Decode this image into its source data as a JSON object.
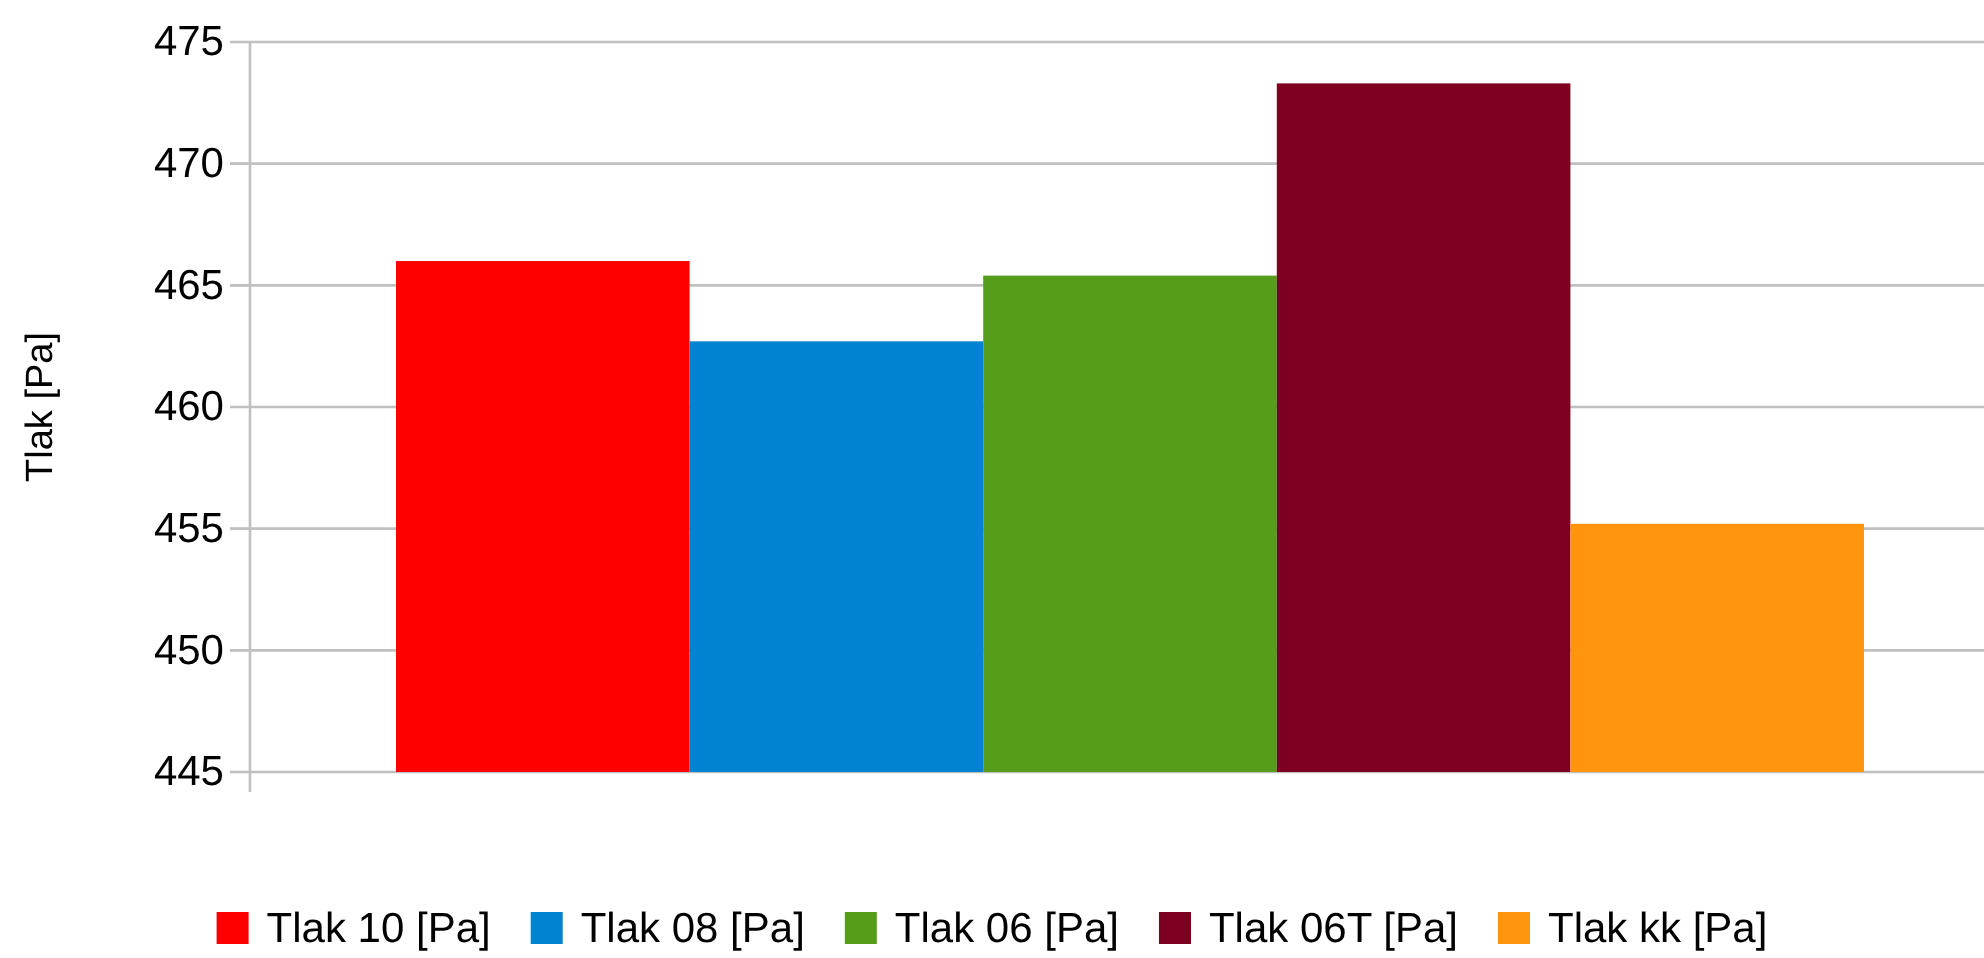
{
  "chart_data": {
    "type": "bar",
    "ylabel": "Tlak [Pa]",
    "categories": [
      null
    ],
    "series": [
      {
        "name": "Tlak 10 [Pa]",
        "color": "#ff0000",
        "values": [
          466.0
        ]
      },
      {
        "name": "Tlak 08 [Pa]",
        "color": "#0084d1",
        "values": [
          462.7
        ]
      },
      {
        "name": "Tlak 06 [Pa]",
        "color": "#579d1c",
        "values": [
          465.4
        ]
      },
      {
        "name": "Tlak 06T [Pa]",
        "color": "#7e0021",
        "values": [
          473.3
        ]
      },
      {
        "name": "Tlak kk [Pa]",
        "color": "#ff950e",
        "values": [
          455.2
        ]
      }
    ],
    "ylim": [
      445,
      475
    ],
    "yticks": [
      445,
      450,
      455,
      460,
      465,
      470,
      475
    ],
    "grid": "y",
    "legend": "bottom"
  }
}
